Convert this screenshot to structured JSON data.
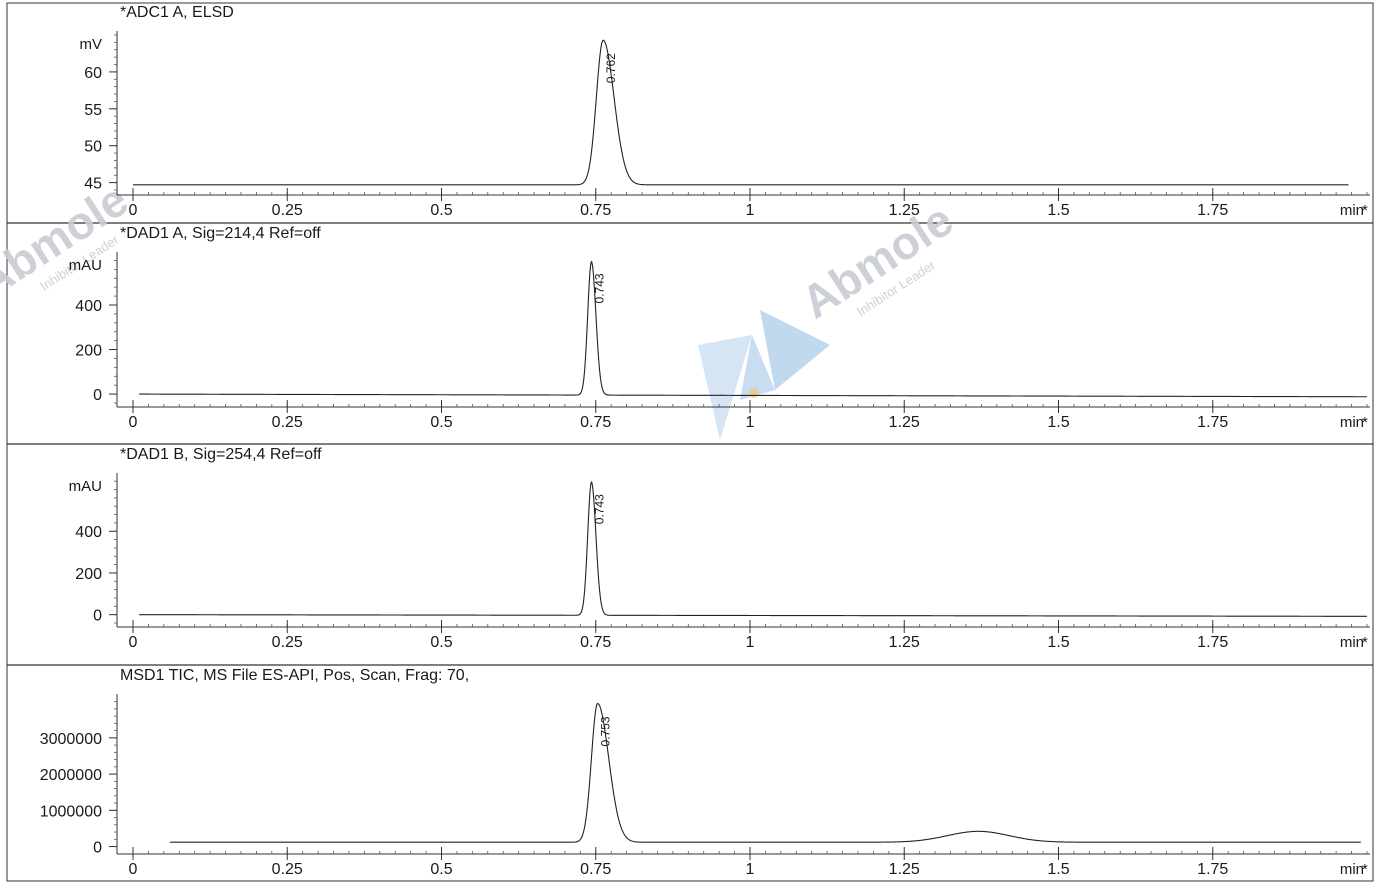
{
  "watermark": {
    "brand": "Abmole",
    "tagline": "Inhibitor Leader"
  },
  "chart_data": [
    {
      "type": "line",
      "title": "*ADC1 A, ELSD",
      "ylabel": "mV",
      "xlabel": "min",
      "xlim": [
        0,
        2.0
      ],
      "ylim": [
        44,
        65
      ],
      "yticks": [
        45,
        50,
        55,
        60
      ],
      "xticks": [
        "0",
        "0.25",
        "0.5",
        "0.75",
        "1",
        "1.25",
        "1.5",
        "1.75"
      ],
      "baseline": 44.7,
      "peaks": [
        {
          "rt": 0.762,
          "label": "0.762",
          "height": 64.3,
          "width": 0.011,
          "tail": 1.6
        }
      ],
      "x_start": 0.0,
      "x_end": 1.97,
      "drift": 0
    },
    {
      "type": "line",
      "title": "*DAD1 A, Sig=214,4 Ref=off",
      "ylabel": "mAU",
      "xlabel": "min",
      "xlim": [
        0,
        2.0
      ],
      "ylim": [
        -40,
        620
      ],
      "yticks": [
        0,
        200,
        400
      ],
      "xticks": [
        "0",
        "0.25",
        "0.5",
        "0.75",
        "1",
        "1.25",
        "1.5",
        "1.75"
      ],
      "baseline": 0,
      "peaks": [
        {
          "rt": 0.743,
          "label": "0.743",
          "height": 600,
          "width": 0.006,
          "tail": 1.2
        }
      ],
      "x_start": 0.01,
      "x_end": 2.0,
      "drift": -12
    },
    {
      "type": "line",
      "title": "*DAD1 B, Sig=254,4 Ref=off",
      "ylabel": "mAU",
      "xlabel": "min",
      "xlim": [
        0,
        2.0
      ],
      "ylim": [
        -40,
        660
      ],
      "yticks": [
        0,
        200,
        400
      ],
      "xticks": [
        "0",
        "0.25",
        "0.5",
        "0.75",
        "1",
        "1.25",
        "1.5",
        "1.75"
      ],
      "baseline": 0,
      "peaks": [
        {
          "rt": 0.743,
          "label": "0.743",
          "height": 640,
          "width": 0.006,
          "tail": 1.2
        }
      ],
      "x_start": 0.01,
      "x_end": 2.0,
      "drift": -8
    },
    {
      "type": "line",
      "title": "MSD1 TIC, MS File     ES-API, Pos, Scan, Frag: 70,",
      "ylabel": "",
      "xlabel": "min",
      "xlim": [
        0,
        2.0
      ],
      "ylim": [
        -150000,
        4100000
      ],
      "yticks": [
        0,
        1000000,
        2000000,
        3000000
      ],
      "ytick_labels": [
        "0",
        "1000000",
        "2000000",
        "3000000"
      ],
      "xticks": [
        "0",
        "0.25",
        "0.5",
        "0.75",
        "1",
        "1.25",
        "1.5",
        "1.75"
      ],
      "baseline": 120000,
      "peaks": [
        {
          "rt": 0.753,
          "label": "0.753",
          "height": 3950000,
          "width": 0.01,
          "tail": 1.8
        },
        {
          "rt": 1.37,
          "label": "",
          "height": 420000,
          "width": 0.05,
          "tail": 1.0
        }
      ],
      "x_start": 0.06,
      "x_end": 1.99,
      "drift": 0
    }
  ]
}
